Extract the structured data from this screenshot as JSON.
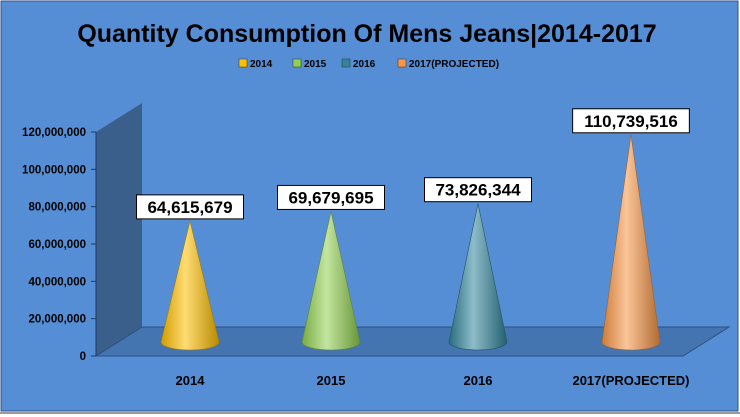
{
  "chart_data": {
    "type": "bar",
    "shape": "cone",
    "title": "Quantity Consumption Of Mens Jeans|2014-2017",
    "categories": [
      "2014",
      "2015",
      "2016",
      "2017(PROJECTED)"
    ],
    "series": [
      {
        "name": "2014",
        "values": [
          64615679,
          null,
          null,
          null
        ]
      },
      {
        "name": "2015",
        "values": [
          null,
          69679695,
          null,
          null
        ]
      },
      {
        "name": "2016",
        "values": [
          null,
          null,
          73826344,
          null
        ]
      },
      {
        "name": "2017(PROJECTED)",
        "values": [
          null,
          null,
          null,
          110739516
        ]
      }
    ],
    "values": [
      64615679,
      69679695,
      73826344,
      110739516
    ],
    "data_labels": [
      "64,615,679",
      "69,679,695",
      "73,826,344",
      "110,739,516"
    ],
    "colors": [
      "#FFC000",
      "#92D050",
      "#31859C",
      "#F79646"
    ],
    "ylim": [
      0,
      120000000
    ],
    "yticks": [
      0,
      20000000,
      40000000,
      60000000,
      80000000,
      100000000,
      120000000
    ],
    "ytick_labels": [
      "0",
      "20,000,000",
      "40,000,000",
      "60,000,000",
      "80,000,000",
      "100,000,000",
      "120,000,000"
    ],
    "legend": {
      "position": "top",
      "entries": [
        "2014",
        "2015",
        "2016",
        "2017(PROJECTED)"
      ]
    },
    "grid": false,
    "background_color": "#558ED5",
    "wall_color": "#3A5F8A",
    "floor_color": "#4475B0"
  }
}
